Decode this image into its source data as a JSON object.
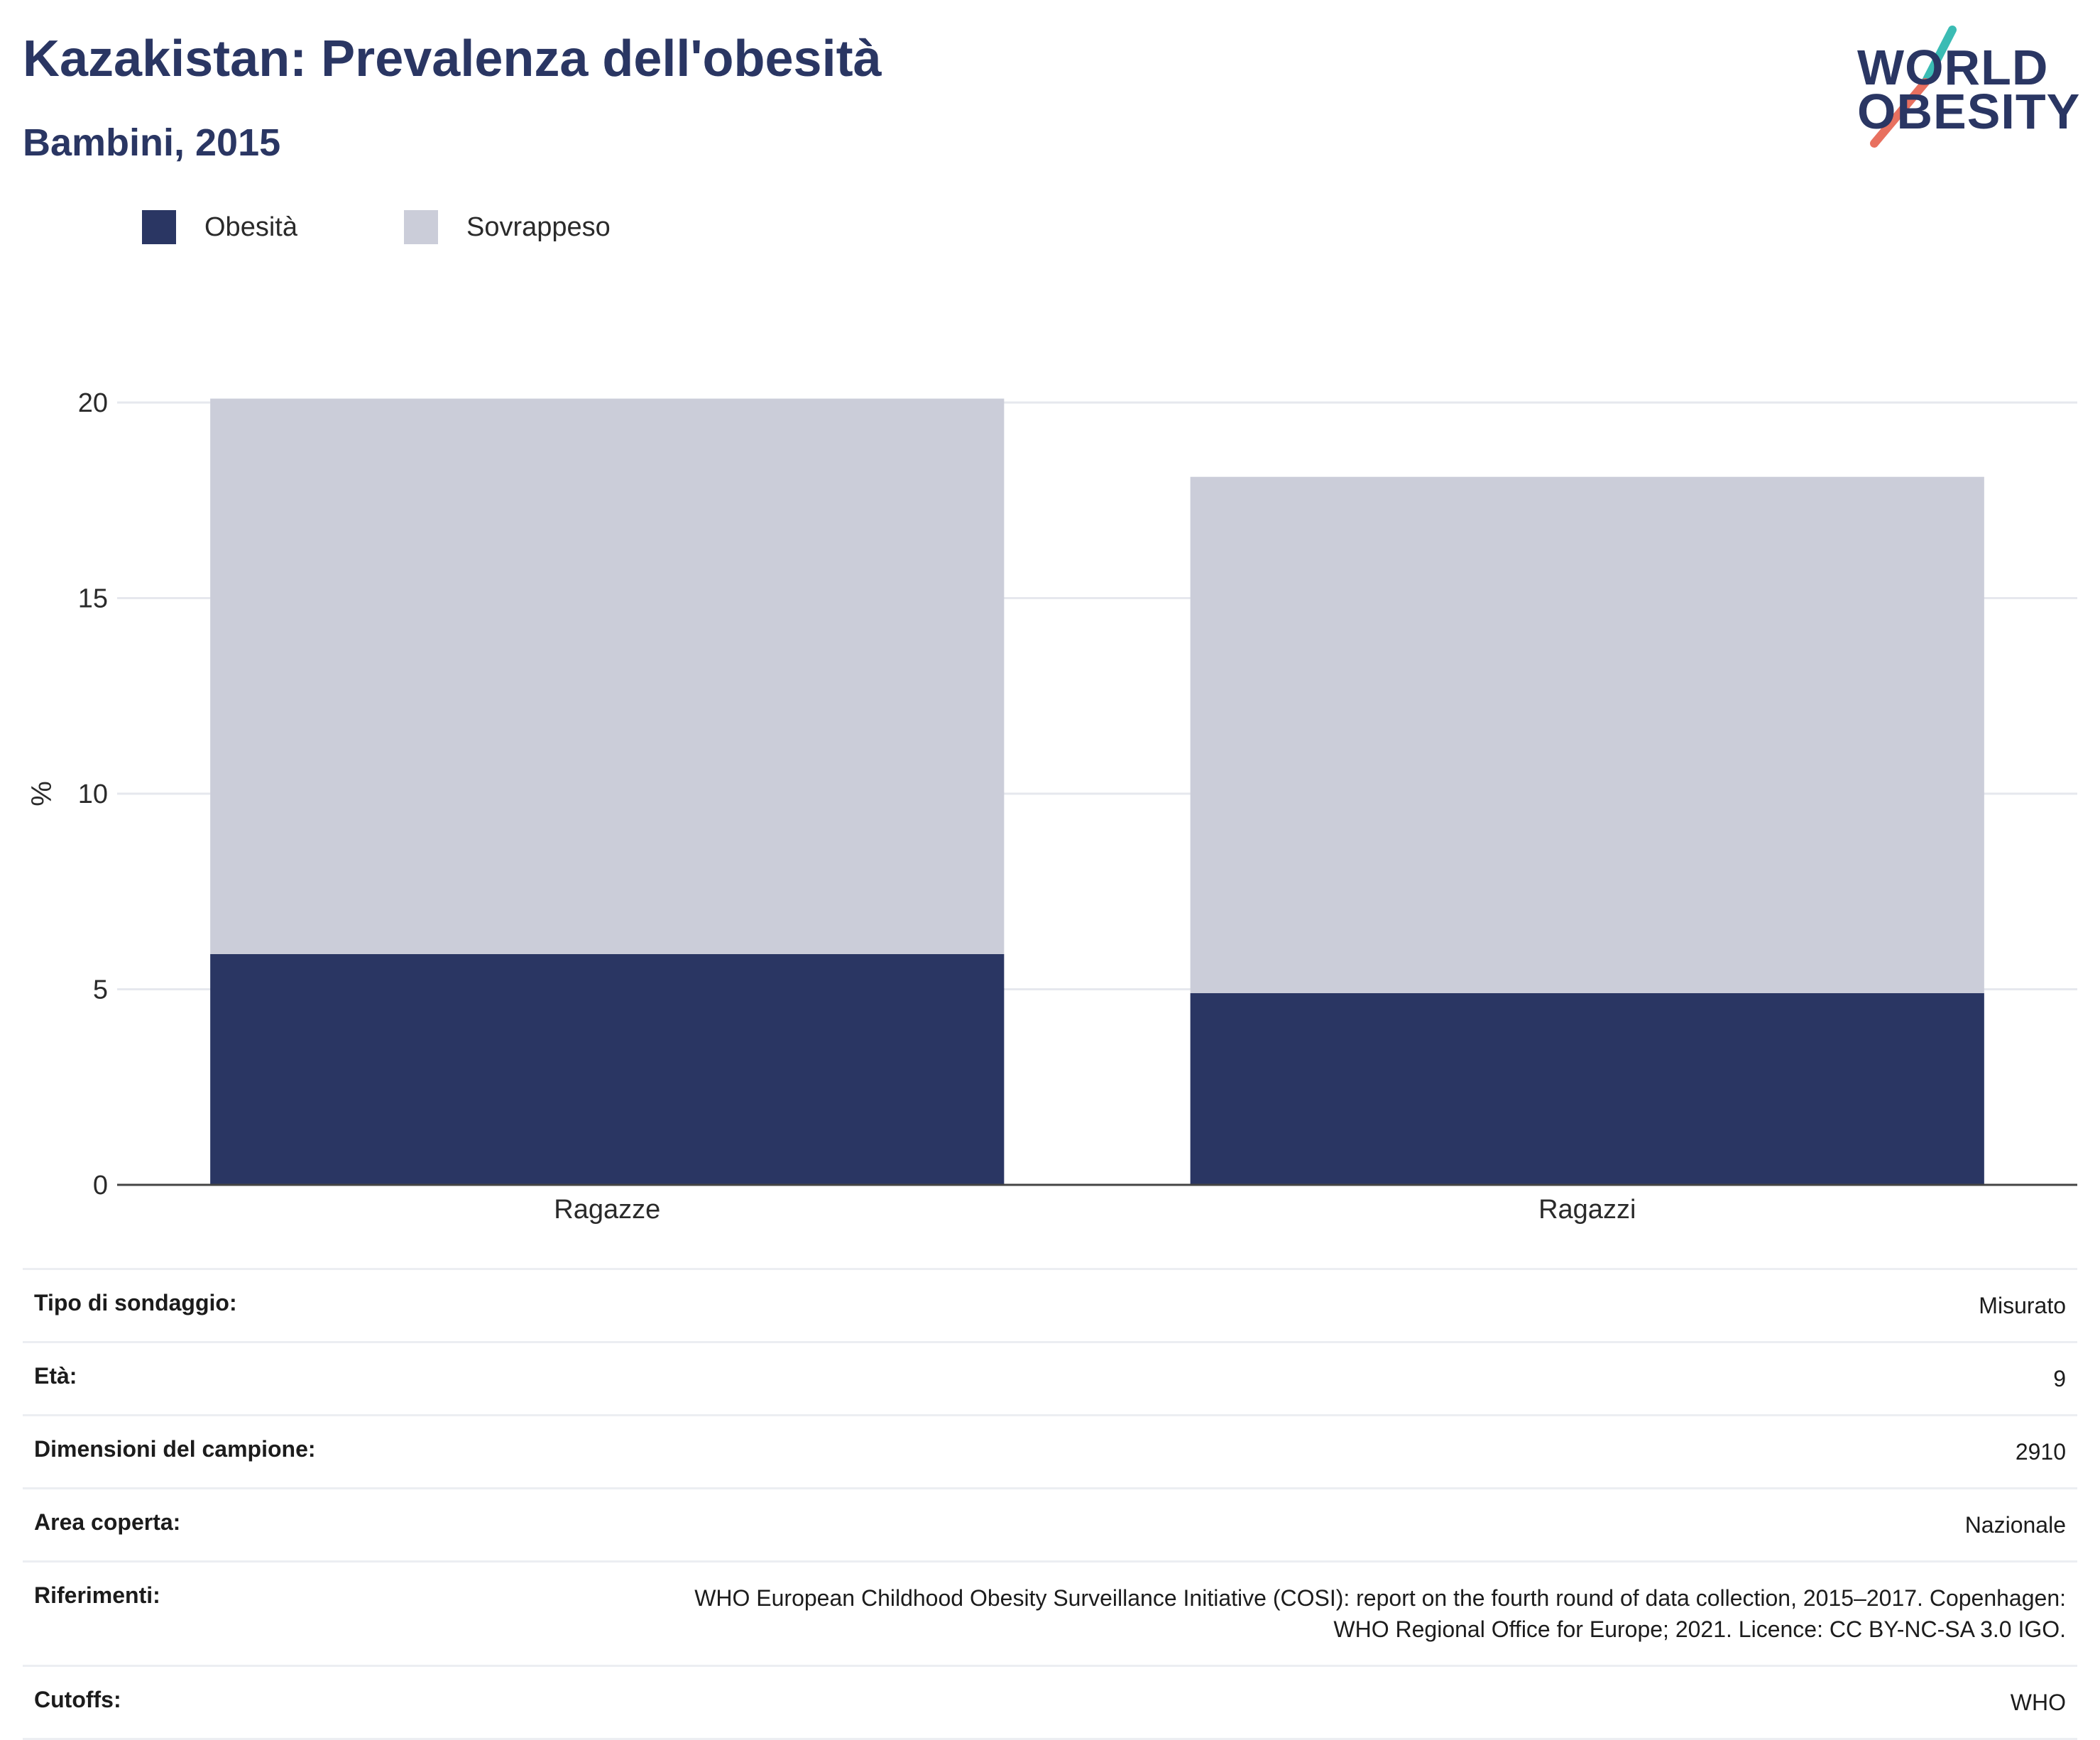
{
  "header": {
    "title": "Kazakistan: Prevalenza dell'obesità",
    "subtitle": "Bambini, 2015"
  },
  "logo": {
    "line1": "WORLD",
    "line2": "OBESITY",
    "accent_teal": "#3bbcb4",
    "accent_coral": "#e8705f"
  },
  "colors": {
    "obesity": "#2a3663",
    "overweight": "#cbcdd9",
    "grid": "#e6e8ee",
    "axis": "#444444"
  },
  "chart_data": {
    "type": "bar",
    "stacked": true,
    "categories": [
      "Ragazze",
      "Ragazzi"
    ],
    "series": [
      {
        "name": "Obesità",
        "values": [
          5.9,
          4.9
        ]
      },
      {
        "name": "Sovrappeso",
        "values": [
          14.2,
          13.2
        ]
      }
    ],
    "ylabel": "%",
    "ylim": [
      0,
      20
    ],
    "yticks": [
      0,
      5,
      10,
      15,
      20
    ],
    "grid": true,
    "legend_position": "top-left"
  },
  "info": [
    {
      "label": "Tipo di sondaggio:",
      "value": [
        "Misurato"
      ]
    },
    {
      "label": "Età:",
      "value": [
        "9"
      ]
    },
    {
      "label": "Dimensioni del campione:",
      "value": [
        "2910"
      ]
    },
    {
      "label": "Area coperta:",
      "value": [
        "Nazionale"
      ]
    },
    {
      "label": "Riferimenti:",
      "value": [
        "WHO European Childhood Obesity Surveillance Initiative (COSI): report on the fourth round of data collection, 2015–2017. Copenhagen:",
        "WHO Regional Office for Europe; 2021. Licence: CC BY-NC-SA 3.0 IGO."
      ]
    },
    {
      "label": "Cutoffs:",
      "value": [
        "WHO"
      ]
    }
  ]
}
